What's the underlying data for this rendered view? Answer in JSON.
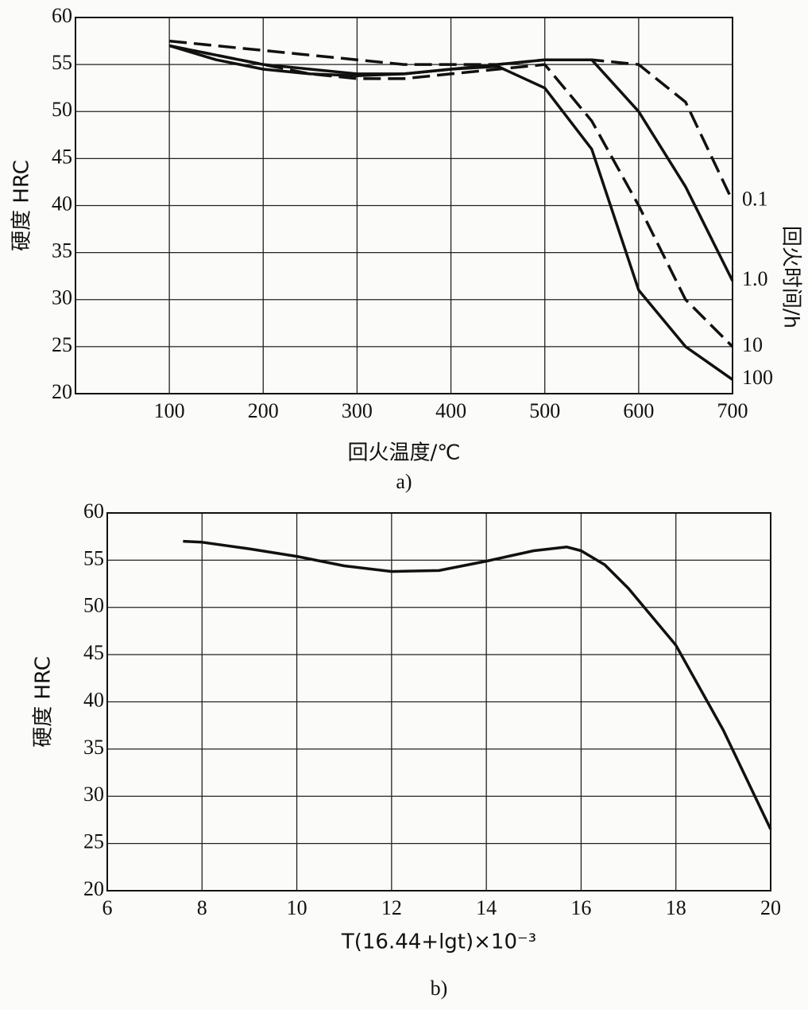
{
  "chart_data": [
    {
      "type": "line",
      "y_label": "硬度 HRC",
      "x_label": "回火温度/℃",
      "caption": "a)",
      "legend_title": "回火时间/h",
      "x": [
        100,
        150,
        200,
        250,
        300,
        350,
        400,
        450,
        500,
        550,
        600,
        650,
        700
      ],
      "series": [
        {
          "name": "0.1",
          "color": "#111111",
          "linestyle": "dashed",
          "values": [
            57.5,
            57,
            56.5,
            56,
            55.5,
            55,
            55,
            55,
            55.5,
            55.5,
            55,
            51,
            40.5
          ]
        },
        {
          "name": "1.0",
          "color": "#111111",
          "linestyle": "solid",
          "values": [
            57,
            56,
            55,
            54.5,
            54,
            54,
            54.5,
            55,
            55.5,
            55.5,
            50,
            42,
            32
          ]
        },
        {
          "name": "10",
          "color": "#111111",
          "linestyle": "dashed",
          "values": [
            57,
            56,
            55,
            54,
            53.5,
            53.5,
            54,
            54.5,
            55,
            49,
            40,
            30,
            25
          ]
        },
        {
          "name": "100",
          "color": "#111111",
          "linestyle": "solid",
          "values": [
            57,
            55.5,
            54.5,
            54,
            53.8,
            54,
            54.5,
            54.8,
            52.5,
            46,
            31,
            25,
            21.5
          ]
        }
      ],
      "xlim": [
        0,
        700
      ],
      "xticks": [
        100,
        200,
        300,
        400,
        500,
        600,
        700
      ],
      "ylim": [
        20,
        60
      ],
      "yticks": [
        20,
        25,
        30,
        35,
        40,
        45,
        50,
        55,
        60
      ],
      "grid": true
    },
    {
      "type": "line",
      "y_label": "硬度 HRC",
      "x_label": "T(16.44+lgt)×10⁻³",
      "caption": "b)",
      "x": [
        7.6,
        8,
        9,
        10,
        11,
        12,
        13,
        14,
        15,
        15.7,
        16,
        16.5,
        17,
        18,
        19,
        20
      ],
      "series": [
        {
          "name": null,
          "color": "#111111",
          "linestyle": "solid",
          "values": [
            57,
            56.9,
            56.2,
            55.4,
            54.4,
            53.8,
            53.9,
            54.9,
            56,
            56.4,
            56,
            54.5,
            52,
            46,
            37,
            26.5
          ]
        }
      ],
      "xlim": [
        6,
        20
      ],
      "xticks": [
        6,
        8,
        10,
        12,
        14,
        16,
        18,
        20
      ],
      "ylim": [
        20,
        60
      ],
      "yticks": [
        20,
        25,
        30,
        35,
        40,
        45,
        50,
        55,
        60
      ],
      "grid": true
    }
  ]
}
